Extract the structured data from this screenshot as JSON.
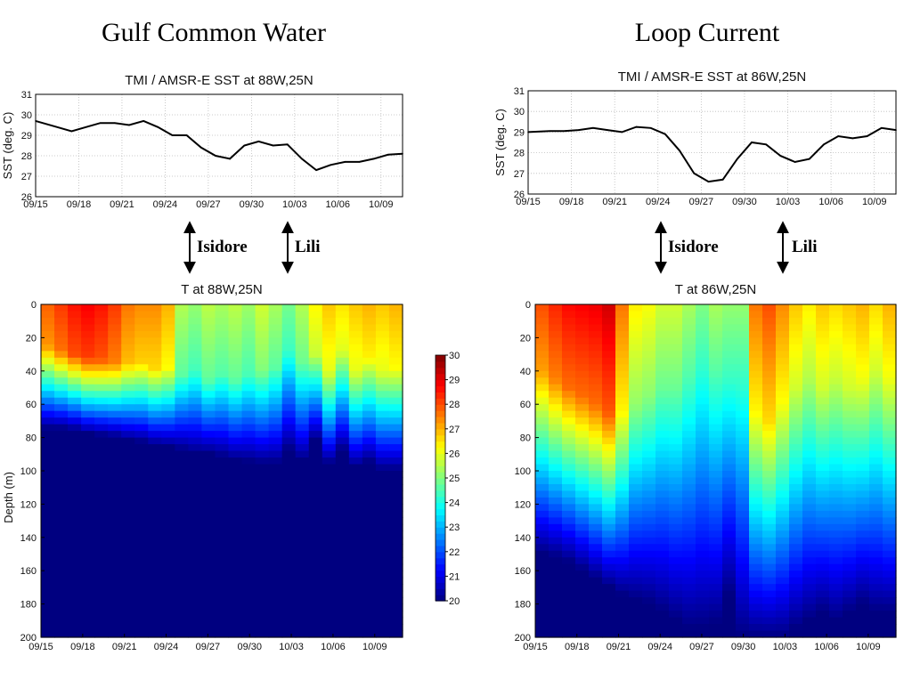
{
  "panels": [
    {
      "title": "Gulf Common Water"
    },
    {
      "title": "Loop Current"
    }
  ],
  "storms": [
    "Isidore",
    "Lili"
  ],
  "colors": {
    "line": "#000000",
    "grid": "#bbbbbb"
  },
  "chart_data": [
    {
      "type": "line",
      "title": "TMI / AMSR-E SST at 88W,25N",
      "xlabel": "",
      "ylabel": "SST (deg. C)",
      "x_ticks": [
        "09/15",
        "09/18",
        "09/21",
        "09/24",
        "09/27",
        "09/30",
        "10/03",
        "10/06",
        "10/09"
      ],
      "xlim": [
        0,
        25.5
      ],
      "ylim": [
        26,
        31
      ],
      "y_ticks": [
        26,
        27,
        28,
        29,
        30,
        31
      ],
      "grid": true,
      "series": [
        {
          "x": [
            0,
            1.5,
            2.5,
            3.5,
            4.5,
            5.5,
            6.5,
            7.5,
            8.5,
            9.5,
            10.5,
            11.5,
            12.5,
            13.5,
            14.5,
            15.5,
            16.5,
            17.5,
            18.5,
            19.5,
            20.5,
            21.5,
            22.5,
            23.5,
            24.5,
            25.5
          ],
          "values": [
            29.7,
            29.4,
            29.2,
            29.4,
            29.6,
            29.6,
            29.5,
            29.7,
            29.4,
            29.0,
            29.0,
            28.4,
            28.0,
            27.85,
            28.5,
            28.7,
            28.5,
            28.55,
            27.85,
            27.3,
            27.55,
            27.7,
            27.7,
            27.85,
            28.05,
            28.1
          ]
        }
      ]
    },
    {
      "type": "line",
      "title": "TMI / AMSR-E SST at 86W,25N",
      "xlabel": "",
      "ylabel": "SST (deg. C)",
      "x_ticks": [
        "09/15",
        "09/18",
        "09/21",
        "09/24",
        "09/27",
        "09/30",
        "10/03",
        "10/06",
        "10/09"
      ],
      "xlim": [
        0,
        25.5
      ],
      "ylim": [
        26,
        31
      ],
      "y_ticks": [
        26,
        27,
        28,
        29,
        30,
        31
      ],
      "grid": true,
      "series": [
        {
          "x": [
            0,
            1.5,
            2.5,
            3.5,
            4.5,
            5.5,
            6.5,
            7.5,
            8.5,
            9.5,
            10.5,
            11.5,
            12.5,
            13.5,
            14.5,
            15.5,
            16.5,
            17.5,
            18.5,
            19.5,
            20.5,
            21.5,
            22.5,
            23.5,
            24.5,
            25.5
          ],
          "values": [
            29.0,
            29.05,
            29.05,
            29.1,
            29.2,
            29.1,
            29.0,
            29.25,
            29.2,
            28.9,
            28.1,
            27.0,
            26.6,
            26.7,
            27.7,
            28.5,
            28.4,
            27.85,
            27.55,
            27.7,
            28.4,
            28.8,
            28.7,
            28.8,
            29.2,
            29.1
          ]
        }
      ]
    },
    {
      "type": "heatmap",
      "title": "T at 88W,25N",
      "ylabel": "Depth (m)",
      "x_ticks": [
        "09/15",
        "09/18",
        "09/21",
        "09/24",
        "09/27",
        "09/30",
        "10/03",
        "10/06",
        "10/09"
      ],
      "y_ticks": [
        0,
        20,
        40,
        60,
        80,
        100,
        120,
        140,
        160,
        180,
        200
      ],
      "ylim": [
        200,
        0
      ],
      "colorbar": {
        "min": 20,
        "max": 30,
        "ticks": [
          20,
          21,
          22,
          23,
          24,
          25,
          26,
          27,
          28,
          29,
          30
        ]
      },
      "days": [
        0,
        1,
        2,
        3,
        4,
        5,
        6,
        7,
        8,
        9,
        10,
        11,
        12,
        13,
        14,
        15,
        16,
        17,
        18,
        19,
        20,
        21,
        22,
        23,
        24,
        25,
        26
      ],
      "surface_temp": [
        27.8,
        28.2,
        28.6,
        28.8,
        28.6,
        28.2,
        27.6,
        27.4,
        27.4,
        27.0,
        25.5,
        25.2,
        25.6,
        25.4,
        25.6,
        25.3,
        25.8,
        25.4,
        24.9,
        25.5,
        26.3,
        26.8,
        26.5,
        26.8,
        27.0,
        26.8,
        27.0
      ],
      "mixed_depth": [
        25,
        28,
        30,
        32,
        33,
        35,
        35,
        35,
        38,
        38,
        42,
        40,
        45,
        42,
        45,
        42,
        40,
        38,
        28,
        35,
        30,
        40,
        28,
        40,
        32,
        40,
        38
      ],
      "cold_depth": [
        75,
        75,
        76,
        78,
        79,
        80,
        82,
        83,
        85,
        86,
        88,
        90,
        90,
        92,
        94,
        95,
        96,
        96,
        88,
        94,
        82,
        96,
        88,
        98,
        95,
        100,
        100
      ]
    },
    {
      "type": "heatmap",
      "title": "T at 86W,25N",
      "ylabel": "",
      "x_ticks": [
        "09/15",
        "09/18",
        "09/21",
        "09/24",
        "09/27",
        "09/30",
        "10/03",
        "10/06",
        "10/09"
      ],
      "y_ticks": [
        0,
        20,
        40,
        60,
        80,
        100,
        120,
        140,
        160,
        180,
        200
      ],
      "ylim": [
        200,
        0
      ],
      "days": [
        0,
        1,
        2,
        3,
        4,
        5,
        6,
        7,
        8,
        9,
        10,
        11,
        12,
        13,
        14,
        15,
        16,
        17,
        18,
        19,
        20,
        21,
        22,
        23,
        24,
        25,
        26
      ],
      "surface_temp": [
        28.0,
        28.4,
        28.7,
        28.8,
        28.9,
        29.2,
        27.6,
        26.4,
        26.2,
        25.8,
        25.8,
        25.4,
        25.0,
        25.4,
        25.2,
        25.2,
        27.6,
        28.0,
        27.4,
        26.8,
        26.4,
        26.8,
        26.6,
        26.8,
        27.0,
        26.6,
        27.0
      ],
      "mixed_depth": [
        40,
        45,
        50,
        55,
        60,
        65,
        65,
        60,
        55,
        50,
        50,
        45,
        40,
        40,
        45,
        50,
        65,
        70,
        60,
        50,
        45,
        50,
        45,
        50,
        45,
        40,
        45
      ],
      "cold_depth": [
        150,
        152,
        155,
        160,
        165,
        170,
        175,
        178,
        180,
        185,
        190,
        195,
        195,
        192,
        175,
        200,
        200,
        200,
        200,
        195,
        190,
        185,
        190,
        185,
        180,
        185,
        185
      ]
    }
  ]
}
